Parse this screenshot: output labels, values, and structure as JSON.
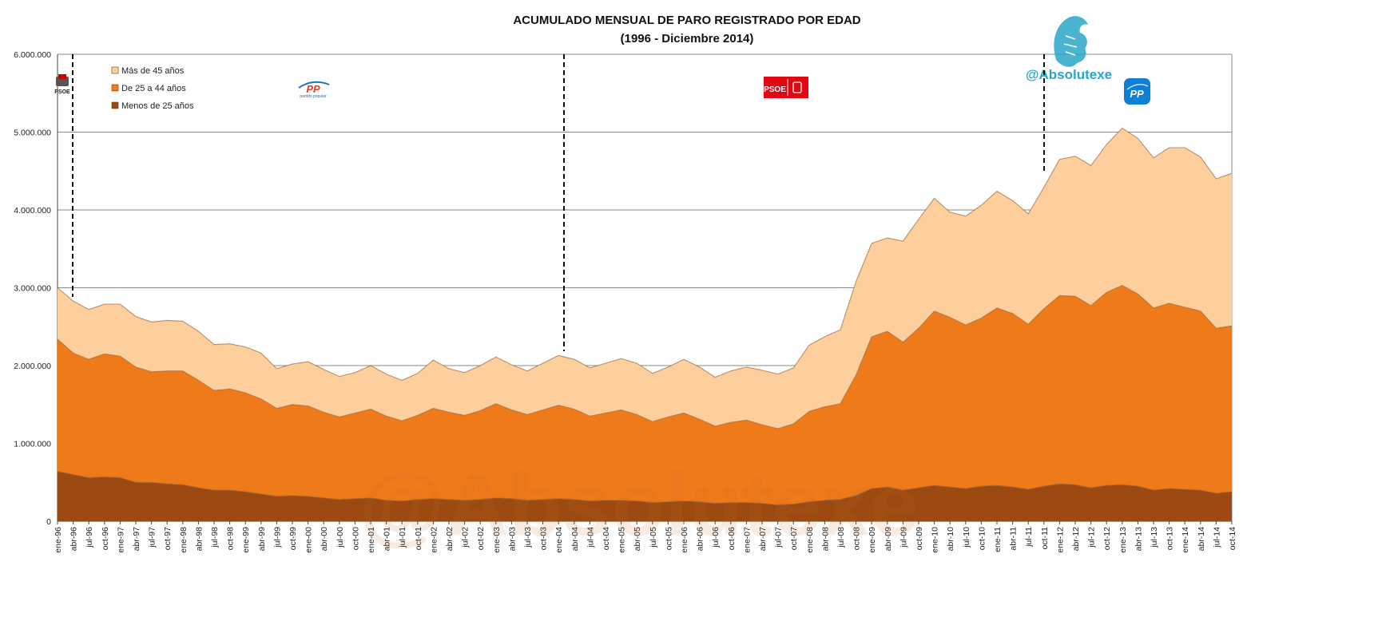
{
  "chart_data": {
    "type": "area",
    "title": "ACUMULADO MENSUAL DE PARO REGISTRADO POR EDAD",
    "subtitle": "(1996 - Diciembre 2014)",
    "stacked": true,
    "ylim": [
      0,
      6000000
    ],
    "yticks": [
      "0",
      "1.000.000",
      "2.000.000",
      "3.000.000",
      "4.000.000",
      "5.000.000",
      "6.000.000"
    ],
    "grid": true,
    "legend_position": "top-left",
    "x_labels": [
      "ene-96",
      "abr-96",
      "jul-96",
      "oct-96",
      "ene-97",
      "abr-97",
      "jul-97",
      "oct-97",
      "ene-98",
      "abr-98",
      "jul-98",
      "oct-98",
      "ene-99",
      "abr-99",
      "jul-99",
      "oct-99",
      "ene-00",
      "abr-00",
      "jul-00",
      "oct-00",
      "ene-01",
      "abr-01",
      "jul-01",
      "oct-01",
      "ene-02",
      "abr-02",
      "jul-02",
      "oct-02",
      "ene-03",
      "abr-03",
      "jul-03",
      "oct-03",
      "ene-04",
      "abr-04",
      "jul-04",
      "oct-04",
      "ene-05",
      "abr-05",
      "jul-05",
      "oct-05",
      "ene-06",
      "abr-06",
      "jul-06",
      "oct-06",
      "ene-07",
      "abr-07",
      "jul-07",
      "oct-07",
      "ene-08",
      "abr-08",
      "jul-08",
      "oct-08",
      "ene-09",
      "abr-09",
      "jul-09",
      "oct-09",
      "ene-10",
      "abr-10",
      "jul-10",
      "oct-10",
      "ene-11",
      "abr-11",
      "jul-11",
      "oct-11",
      "ene-12",
      "abr-12",
      "jul-12",
      "oct-12",
      "ene-13",
      "abr-13",
      "jul-13",
      "oct-13",
      "ene-14",
      "abr-14",
      "jul-14",
      "oct-14"
    ],
    "series": [
      {
        "name": "Menos de 25 años",
        "color": "#9c4a12",
        "values": [
          640000,
          600000,
          560000,
          570000,
          560000,
          500000,
          500000,
          480000,
          470000,
          430000,
          400000,
          400000,
          380000,
          350000,
          320000,
          330000,
          320000,
          300000,
          280000,
          290000,
          300000,
          270000,
          260000,
          280000,
          290000,
          280000,
          270000,
          280000,
          300000,
          290000,
          270000,
          280000,
          290000,
          280000,
          260000,
          270000,
          270000,
          260000,
          240000,
          250000,
          260000,
          250000,
          230000,
          240000,
          240000,
          230000,
          210000,
          220000,
          250000,
          270000,
          280000,
          330000,
          420000,
          440000,
          400000,
          430000,
          460000,
          440000,
          420000,
          450000,
          460000,
          440000,
          410000,
          450000,
          480000,
          470000,
          430000,
          460000,
          470000,
          450000,
          400000,
          420000,
          410000,
          400000,
          360000,
          380000
        ]
      },
      {
        "name": "De 25 a 44 años",
        "color": "#ef7a1a",
        "values": [
          1700000,
          1560000,
          1520000,
          1580000,
          1560000,
          1480000,
          1420000,
          1450000,
          1460000,
          1380000,
          1280000,
          1300000,
          1270000,
          1220000,
          1130000,
          1170000,
          1160000,
          1100000,
          1060000,
          1100000,
          1140000,
          1080000,
          1030000,
          1080000,
          1160000,
          1120000,
          1090000,
          1140000,
          1210000,
          1140000,
          1100000,
          1150000,
          1200000,
          1160000,
          1090000,
          1120000,
          1160000,
          1110000,
          1040000,
          1090000,
          1130000,
          1060000,
          990000,
          1030000,
          1060000,
          1010000,
          980000,
          1030000,
          1160000,
          1200000,
          1230000,
          1550000,
          1950000,
          2000000,
          1900000,
          2050000,
          2240000,
          2180000,
          2100000,
          2160000,
          2280000,
          2230000,
          2120000,
          2280000,
          2420000,
          2420000,
          2340000,
          2480000,
          2560000,
          2470000,
          2340000,
          2380000,
          2340000,
          2300000,
          2120000,
          2130000
        ]
      },
      {
        "name": "Más de 45 años",
        "color": "#fccf9c",
        "values": [
          660000,
          670000,
          640000,
          640000,
          670000,
          650000,
          640000,
          650000,
          640000,
          630000,
          590000,
          580000,
          590000,
          590000,
          510000,
          520000,
          570000,
          550000,
          520000,
          520000,
          560000,
          540000,
          520000,
          540000,
          620000,
          560000,
          550000,
          580000,
          600000,
          580000,
          560000,
          600000,
          640000,
          640000,
          620000,
          640000,
          660000,
          660000,
          620000,
          640000,
          690000,
          670000,
          630000,
          660000,
          680000,
          700000,
          700000,
          720000,
          850000,
          900000,
          950000,
          1200000,
          1200000,
          1200000,
          1300000,
          1400000,
          1450000,
          1350000,
          1400000,
          1450000,
          1500000,
          1450000,
          1420000,
          1560000,
          1750000,
          1800000,
          1800000,
          1900000,
          2020000,
          2000000,
          1930000,
          2000000,
          2050000,
          1980000,
          1920000,
          1960000
        ]
      }
    ],
    "periods": [
      {
        "logo": "PSOE",
        "logo_sub": "PSOE",
        "color": "#d40000"
      },
      {
        "logo": "PP",
        "logo_sub": "partido popular",
        "color": "#1f6fc5"
      },
      {
        "logo": "PSOE",
        "logo_sub": "",
        "color": "#e30613"
      },
      {
        "logo": "PP",
        "logo_sub": "",
        "color": "#0f7fd6"
      }
    ],
    "handle": "@Absolutexe",
    "watermark": "@Absolutexe"
  }
}
